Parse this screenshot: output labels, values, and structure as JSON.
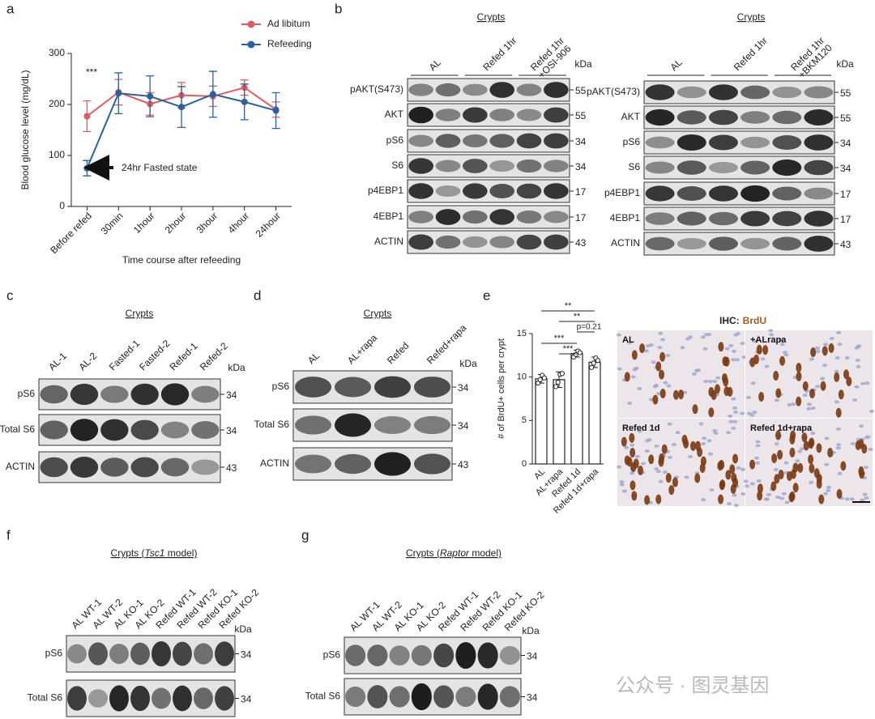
{
  "panel_labels": [
    "a",
    "b",
    "c",
    "d",
    "e",
    "f",
    "g"
  ],
  "chart_data": [
    {
      "type": "line",
      "x_label": "Time course after refeeding",
      "y_label": "Blood glucose level (mg/dL)",
      "categories": [
        "Before refed",
        "30min",
        "1hour",
        "2hour",
        "3hour",
        "4hour",
        "24hour"
      ],
      "series": [
        {
          "name": "Ad libitum",
          "color": "#e05a60",
          "values": [
            177,
            224,
            201,
            218,
            216,
            233,
            190
          ],
          "errors": [
            30,
            25,
            22,
            25,
            20,
            15,
            15
          ]
        },
        {
          "name": "Refeeding",
          "color": "#2c5f9e",
          "values": [
            75,
            222,
            216,
            195,
            220,
            205,
            188
          ],
          "errors": [
            15,
            40,
            40,
            40,
            45,
            35,
            35
          ]
        }
      ],
      "ylim": [
        0,
        300
      ],
      "yticks": [
        0,
        100,
        200,
        300
      ],
      "legend": "top-right",
      "annotations": [
        "***",
        "24hr Fasted state"
      ]
    },
    {
      "type": "bar",
      "y_label": "# of BrdU+ cells per crypt",
      "categories": [
        "AL",
        "AL+rapa",
        "Refed 1d",
        "Refed 1d+rapa"
      ],
      "values": [
        9.8,
        9.7,
        12.7,
        11.7
      ],
      "errors": [
        0.5,
        0.9,
        0.4,
        0.6
      ],
      "points": [
        [
          9.3,
          9.7,
          10.2,
          9.9
        ],
        [
          8.9,
          9.4,
          10.3,
          10.4
        ],
        [
          12.3,
          12.6,
          13.0,
          12.8
        ],
        [
          11.1,
          11.6,
          12.2,
          11.9
        ]
      ],
      "ylim": [
        0,
        15
      ],
      "yticks": [
        0,
        5,
        10,
        15
      ],
      "significance": [
        "**",
        "**",
        "p=0.21",
        "***",
        "***"
      ]
    }
  ],
  "blots": [
    {
      "title": [
        "Crypts"
      ],
      "kda_header": "kDa",
      "groups": [
        [
          "AL"
        ],
        [
          "Refed 1hr"
        ],
        [
          "Refed 1hr",
          "+OSI-906"
        ]
      ],
      "rows": [
        {
          "label": "pAKT(S473)",
          "kda": "55"
        },
        {
          "label": "AKT",
          "kda": "55"
        },
        {
          "label": "pS6",
          "kda": "34"
        },
        {
          "label": "S6",
          "kda": "34"
        },
        {
          "label": "p4EBP1",
          "kda": "17"
        },
        {
          "label": "4EBP1",
          "kda": "17"
        },
        {
          "label": "ACTIN",
          "kda": "43"
        }
      ]
    },
    {
      "title": [
        "Crypts"
      ],
      "kda_header": "kDa",
      "groups": [
        [
          "AL"
        ],
        [
          "Refed 1hr"
        ],
        [
          "Refed 1hr",
          "+BKM120"
        ]
      ],
      "rows": [
        {
          "label": "pAKT(S473)",
          "kda": "55"
        },
        {
          "label": "AKT",
          "kda": "55"
        },
        {
          "label": "pS6",
          "kda": "34"
        },
        {
          "label": "S6",
          "kda": "34"
        },
        {
          "label": "p4EBP1",
          "kda": "17"
        },
        {
          "label": "4EBP1",
          "kda": "17"
        },
        {
          "label": "ACTIN",
          "kda": "43"
        }
      ]
    },
    {
      "title": [
        "Crypts"
      ],
      "kda_header": "kDa",
      "lanes": [
        "AL-1",
        "AL-2",
        "Fasted-1",
        "Fasted-2",
        "Refed-1",
        "Refed-2"
      ],
      "rows": [
        {
          "label": "pS6",
          "kda": "34"
        },
        {
          "label": "Total S6",
          "kda": "34"
        },
        {
          "label": "ACTIN",
          "kda": "43"
        }
      ]
    },
    {
      "title": [
        "Crypts"
      ],
      "kda_header": "kDa",
      "lanes": [
        "AL",
        "AL+rapa",
        "Refed",
        "Refed+rapa"
      ],
      "rows": [
        {
          "label": "pS6",
          "kda": "34"
        },
        {
          "label": "Total S6",
          "kda": "34"
        },
        {
          "label": "ACTIN",
          "kda": "43"
        }
      ]
    },
    {
      "title": [
        "Crypts (",
        "Tsc1",
        " model)"
      ],
      "kda_header": "kDa",
      "lanes": [
        "AL WT-1",
        "AL WT-2",
        "AL KO-1",
        "AL KO-2",
        "Refed WT-1",
        "Refed WT-2",
        "Refed KO-1",
        "Refed KO-2"
      ],
      "rows": [
        {
          "label": "pS6",
          "kda": "34"
        },
        {
          "label": "Total S6",
          "kda": "34"
        }
      ]
    },
    {
      "title": [
        "Crypts (",
        "Raptor",
        " model)"
      ],
      "kda_header": "kDa",
      "lanes": [
        "AL WT-1",
        "AL WT-2",
        "AL KO-1",
        "AL KO-2",
        "Refed WT-1",
        "Refed WT-2",
        "Refed KO-1",
        "Refed KO-2"
      ],
      "rows": [
        {
          "label": "pS6",
          "kda": "34"
        },
        {
          "label": "Total S6",
          "kda": "34"
        }
      ]
    }
  ],
  "ihc": {
    "title": "IHC:",
    "stain": "BrdU",
    "panels": [
      "AL",
      "+ALrapa",
      "Refed 1d",
      "Refed 1d+rapa"
    ]
  },
  "watermark": "公众号 · 图灵基因"
}
